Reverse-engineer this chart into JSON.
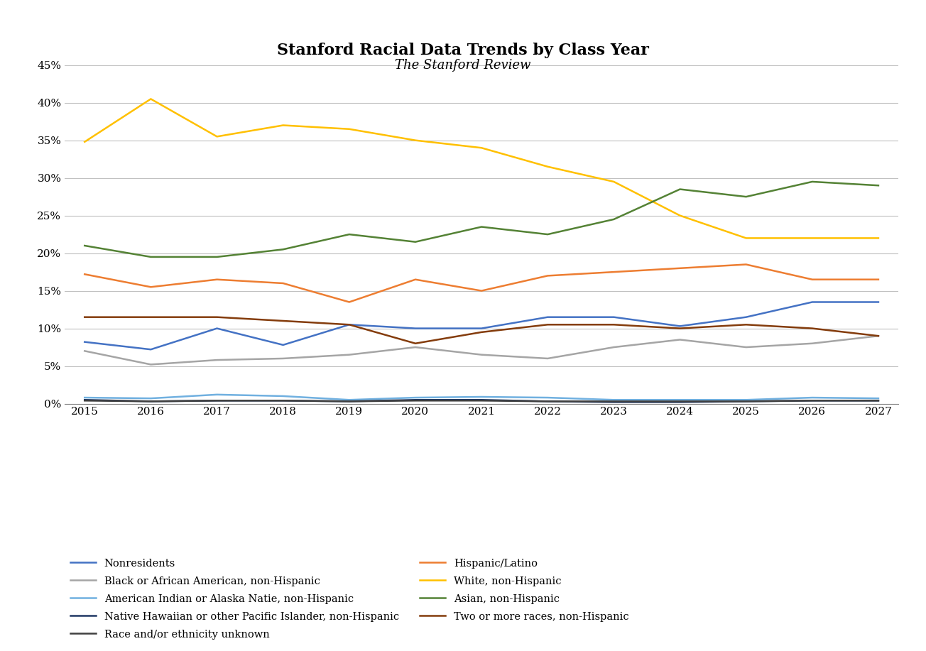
{
  "title": "Stanford Racial Data Trends by Class Year",
  "subtitle": "The Stanford Review",
  "years": [
    2015,
    2016,
    2017,
    2018,
    2019,
    2020,
    2021,
    2022,
    2023,
    2024,
    2025,
    2026,
    2027
  ],
  "series": [
    {
      "label": "Nonresidents",
      "color": "#4472C4",
      "linewidth": 1.8,
      "values": [
        8.2,
        7.2,
        10.0,
        7.8,
        10.5,
        10.0,
        10.0,
        11.5,
        11.5,
        10.3,
        11.5,
        13.5,
        13.5
      ]
    },
    {
      "label": "Hispanic/Latino",
      "color": "#ED7D31",
      "linewidth": 1.8,
      "values": [
        17.2,
        15.5,
        16.5,
        16.0,
        13.5,
        16.5,
        15.0,
        17.0,
        17.5,
        18.0,
        18.5,
        16.5,
        16.5
      ]
    },
    {
      "label": "Black or African American, non-Hispanic",
      "color": "#A5A5A5",
      "linewidth": 1.8,
      "values": [
        7.0,
        5.2,
        5.8,
        6.0,
        6.5,
        7.5,
        6.5,
        6.0,
        7.5,
        8.5,
        7.5,
        8.0,
        9.0
      ]
    },
    {
      "label": "White, non-Hispanic",
      "color": "#FFC000",
      "linewidth": 1.8,
      "values": [
        34.8,
        40.5,
        35.5,
        37.0,
        36.5,
        35.0,
        34.0,
        31.5,
        29.5,
        25.0,
        22.0,
        22.0,
        22.0
      ]
    },
    {
      "label": "American Indian or Alaska Natie, non-Hispanic",
      "color": "#70B0E0",
      "linewidth": 1.8,
      "values": [
        0.8,
        0.7,
        1.2,
        1.0,
        0.5,
        0.8,
        0.9,
        0.8,
        0.5,
        0.5,
        0.5,
        0.8,
        0.7
      ]
    },
    {
      "label": "Asian, non-Hispanic",
      "color": "#548235",
      "linewidth": 1.8,
      "values": [
        21.0,
        19.5,
        19.5,
        20.5,
        22.5,
        21.5,
        23.5,
        22.5,
        24.5,
        28.5,
        27.5,
        29.5,
        29.0
      ]
    },
    {
      "label": "Native Hawaiian or other Pacific Islander, non-Hispanic",
      "color": "#203864",
      "linewidth": 1.8,
      "values": [
        0.5,
        0.3,
        0.4,
        0.4,
        0.3,
        0.5,
        0.5,
        0.3,
        0.2,
        0.2,
        0.3,
        0.4,
        0.4
      ]
    },
    {
      "label": "Two or more races, non-Hispanic",
      "color": "#843C0C",
      "linewidth": 1.8,
      "values": [
        11.5,
        11.5,
        11.5,
        11.0,
        10.5,
        8.0,
        9.5,
        10.5,
        10.5,
        10.0,
        10.5,
        10.0,
        9.0
      ]
    },
    {
      "label": "Race and/or ethnicity unknown",
      "color": "#404040",
      "linewidth": 1.8,
      "values": [
        0.4,
        0.3,
        0.4,
        0.4,
        0.3,
        0.4,
        0.4,
        0.3,
        0.3,
        0.3,
        0.3,
        0.4,
        0.4
      ]
    }
  ],
  "ylim": [
    0,
    45
  ],
  "yticks": [
    0,
    5,
    10,
    15,
    20,
    25,
    30,
    35,
    40,
    45
  ],
  "background_color": "#FFFFFF",
  "grid_color": "#C0C0C0",
  "title_fontsize": 16,
  "subtitle_fontsize": 13,
  "legend_order": [
    0,
    1,
    2,
    3,
    4,
    5,
    6,
    7,
    8
  ]
}
